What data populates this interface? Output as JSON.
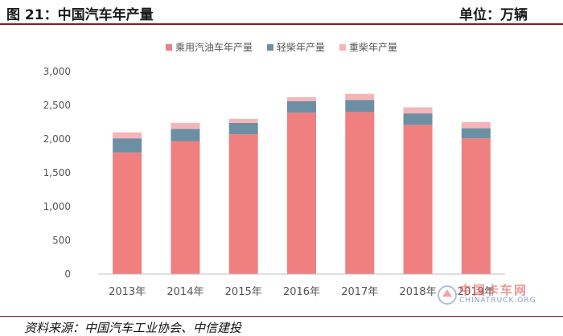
{
  "header": {
    "figure_title": "图 21：中国汽车年产量",
    "unit": "单位：万辆"
  },
  "source": "资料来源：中国汽车工业协会、中信建投",
  "watermark": {
    "brand": "中国卡车网",
    "domain": "CHINATRUCK.ORG"
  },
  "colors": {
    "gasoline": "#f08080",
    "light_diesel": "#6c8fa3",
    "heavy_diesel": "#f5b5b8",
    "axis": "#bfbfbf",
    "text": "#555555",
    "rule": "#8b1a1a"
  },
  "chart_data": {
    "type": "bar",
    "stacked": true,
    "categories": [
      "2013年",
      "2014年",
      "2015年",
      "2016年",
      "2017年",
      "2018年",
      "2019年"
    ],
    "series": [
      {
        "name": "乘用汽油车年产量",
        "color": "#f08080",
        "values": [
          1800,
          1970,
          2070,
          2390,
          2400,
          2210,
          2010
        ]
      },
      {
        "name": "轻柴年产量",
        "color": "#6c8fa3",
        "values": [
          210,
          180,
          170,
          170,
          180,
          170,
          150
        ]
      },
      {
        "name": "重柴年产量",
        "color": "#f5b5b8",
        "values": [
          90,
          90,
          60,
          60,
          90,
          90,
          90
        ]
      }
    ],
    "ylim": [
      0,
      3000
    ],
    "yticks": [
      0,
      500,
      1000,
      1500,
      2000,
      2500,
      3000
    ],
    "ytick_labels": [
      "0",
      "500",
      "1,000",
      "1,500",
      "2,000",
      "2,500",
      "3,000"
    ],
    "legend_position": "top",
    "grid": false
  }
}
